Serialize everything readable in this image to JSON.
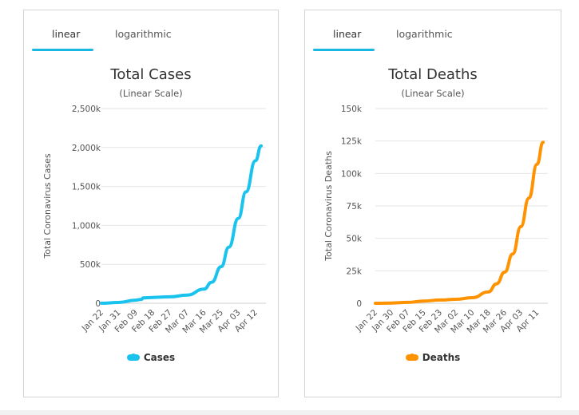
{
  "tabs": {
    "linear": "linear",
    "logarithmic": "logarithmic"
  },
  "colors": {
    "cases": "#19c3ee",
    "deaths": "#ff9200",
    "tab_underline": "#19b8e3"
  },
  "chart_data": [
    {
      "type": "line",
      "title": "Total Cases",
      "subtitle": "(Linear Scale)",
      "xlabel": "",
      "ylabel": "Total Coronavirus Cases",
      "ylim": [
        0,
        2500000
      ],
      "yticks": [
        0,
        500000,
        1000000,
        1500000,
        2000000,
        2500000
      ],
      "ytick_labels": [
        "0",
        "500k",
        "1,000k",
        "1,500k",
        "2,000k",
        "2,500k"
      ],
      "xtick_labels": [
        "Jan 22",
        "Jan 31",
        "Feb 09",
        "Feb 18",
        "Feb 27",
        "Mar 07",
        "Mar 16",
        "Mar 25",
        "Apr 03",
        "Apr 12"
      ],
      "grid": true,
      "legend": "bottom",
      "series": [
        {
          "name": "Cases",
          "x": [
            "Jan 22",
            "Jan 31",
            "Feb 09",
            "Feb 12",
            "Feb 13",
            "Feb 18",
            "Feb 27",
            "Mar 07",
            "Mar 16",
            "Mar 20",
            "Mar 25",
            "Mar 29",
            "Apr 03",
            "Apr 07",
            "Apr 12",
            "Apr 15"
          ],
          "values": [
            600,
            10000,
            40000,
            50000,
            70000,
            75000,
            83000,
            105000,
            182000,
            270000,
            470000,
            720000,
            1090000,
            1430000,
            1830000,
            2020000
          ]
        }
      ]
    },
    {
      "type": "line",
      "title": "Total Deaths",
      "subtitle": "(Linear Scale)",
      "xlabel": "",
      "ylabel": "Total Coronavirus Deaths",
      "ylim": [
        0,
        150000
      ],
      "yticks": [
        0,
        25000,
        50000,
        75000,
        100000,
        125000,
        150000
      ],
      "ytick_labels": [
        "0",
        "25k",
        "50k",
        "75k",
        "100k",
        "125k",
        "150k"
      ],
      "xtick_labels": [
        "Jan 22",
        "Jan 30",
        "Feb 07",
        "Feb 15",
        "Feb 23",
        "Mar 02",
        "Mar 10",
        "Mar 18",
        "Mar 26",
        "Apr 03",
        "Apr 11"
      ],
      "grid": true,
      "legend": "bottom",
      "series": [
        {
          "name": "Deaths",
          "x": [
            "Jan 22",
            "Jan 30",
            "Feb 07",
            "Feb 15",
            "Feb 23",
            "Mar 02",
            "Mar 10",
            "Mar 18",
            "Mar 22",
            "Mar 26",
            "Mar 30",
            "Apr 03",
            "Apr 07",
            "Apr 11",
            "Apr 14"
          ],
          "values": [
            17,
            200,
            700,
            1700,
            2500,
            3100,
            4300,
            8800,
            15000,
            24000,
            38000,
            59000,
            81000,
            107000,
            124000
          ]
        }
      ]
    }
  ]
}
